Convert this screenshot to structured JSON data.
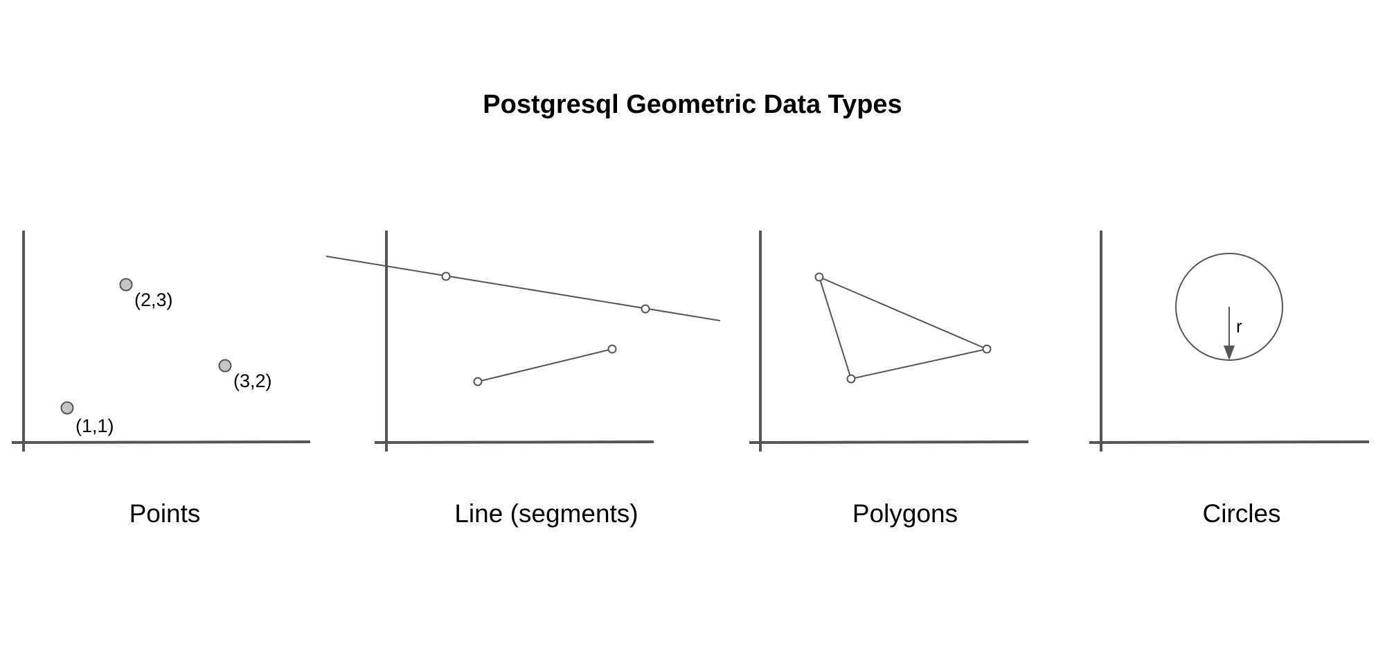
{
  "title": "Postgresql Geometric Data Types",
  "panels": [
    {
      "id": "points",
      "label": "Points",
      "point_labels": [
        "(2,3)",
        "(3,2)",
        "(1,1)"
      ]
    },
    {
      "id": "lines",
      "label": "Line (segments)"
    },
    {
      "id": "polygons",
      "label": "Polygons"
    },
    {
      "id": "circles",
      "label": "Circles",
      "radius_label": "r"
    }
  ],
  "colors": {
    "axis": "#555555",
    "stroke": "#555555",
    "point_fill": "#c8c4c4",
    "vertex_fill": "#ffffff"
  }
}
